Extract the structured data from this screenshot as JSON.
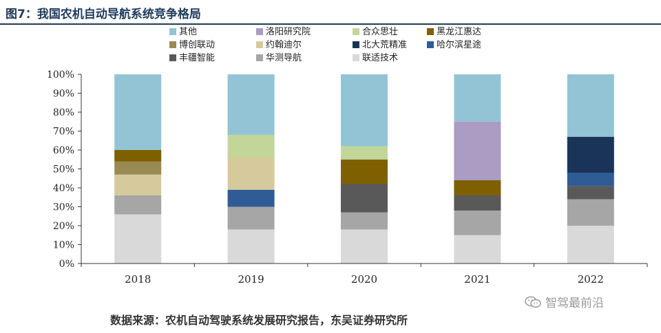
{
  "header": {
    "title": "图7：我国农机自动导航系统竞争格局"
  },
  "footer": {
    "source": "数据来源：农机自动驾驶系统发展研究报告，东吴证券研究所"
  },
  "watermark": {
    "text": "智驾最前沿",
    "icon": "wechat-icon"
  },
  "chart_data": {
    "type": "bar",
    "stacked": true,
    "percent": true,
    "categories": [
      "2018",
      "2019",
      "2020",
      "2021",
      "2022"
    ],
    "ylim": [
      0,
      100
    ],
    "yticks": [
      "0%",
      "10%",
      "20%",
      "30%",
      "40%",
      "50%",
      "60%",
      "70%",
      "80%",
      "90%",
      "100%"
    ],
    "grid": false,
    "legend_position": "top",
    "series": [
      {
        "name": "联适技术",
        "color": "#d9d9d9",
        "values": [
          26,
          18,
          18,
          15,
          20
        ]
      },
      {
        "name": "华测导航",
        "color": "#a6a6a6",
        "values": [
          10,
          12,
          9,
          13,
          14
        ]
      },
      {
        "name": "丰疆智能",
        "color": "#595959",
        "values": [
          0,
          0,
          15,
          8,
          7
        ]
      },
      {
        "name": "哈尔滨星途",
        "color": "#2f5c94",
        "values": [
          0,
          9,
          0,
          0,
          7
        ]
      },
      {
        "name": "北大荒精准",
        "color": "#1a3358",
        "values": [
          0,
          0,
          0,
          0,
          19
        ]
      },
      {
        "name": "约翰迪尔",
        "color": "#d6c99c",
        "values": [
          11,
          17,
          0,
          0,
          0
        ]
      },
      {
        "name": "博创联动",
        "color": "#998a54",
        "values": [
          7,
          0,
          0,
          0,
          0
        ]
      },
      {
        "name": "黑龙江惠达",
        "color": "#7f6000",
        "values": [
          6,
          0,
          13,
          8,
          0
        ]
      },
      {
        "name": "合众思壮",
        "color": "#c2d69a",
        "values": [
          0,
          12,
          7,
          0,
          0
        ]
      },
      {
        "name": "洛阳研究院",
        "color": "#aa9cc2",
        "values": [
          0,
          0,
          0,
          31,
          0
        ]
      },
      {
        "name": "其他",
        "color": "#92c4d6",
        "values": [
          40,
          32,
          38,
          25,
          33
        ]
      }
    ],
    "legend_order": [
      "其他",
      "洛阳研究院",
      "合众思壮",
      "黑龙江惠达",
      "博创联动",
      "约翰迪尔",
      "北大荒精准",
      "哈尔滨星途",
      "丰疆智能",
      "华测导航",
      "联适技术"
    ]
  }
}
